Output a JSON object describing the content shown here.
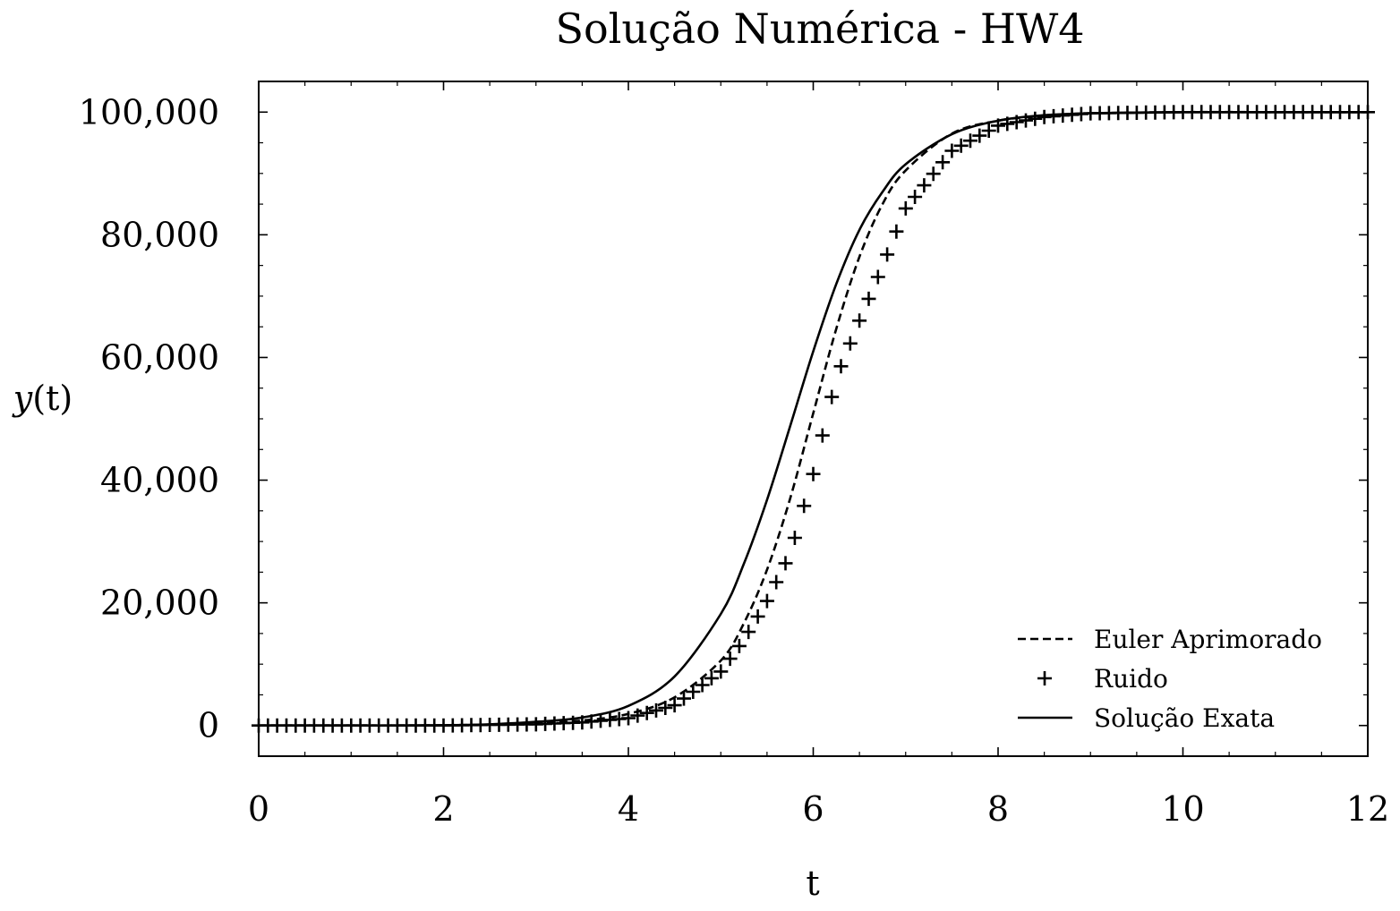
{
  "chart_data": {
    "type": "line",
    "title": "Solução Numérica  - HW4",
    "xlabel": "t",
    "ylabel_italic": "y",
    "ylabel_rest": "(t)",
    "xlim": [
      0,
      12
    ],
    "ylim": [
      -5000,
      105000
    ],
    "xticks": [
      0,
      2,
      4,
      6,
      8,
      10,
      12
    ],
    "xtick_labels": [
      "0",
      "2",
      "4",
      "6",
      "8",
      "10",
      "12"
    ],
    "yticks": [
      0,
      20000,
      40000,
      60000,
      80000,
      100000
    ],
    "ytick_labels": [
      "0",
      "20,000",
      "40,000",
      "60,000",
      "80,000",
      "100,000"
    ],
    "grid": false,
    "legend_position": "bottom-right",
    "x": [
      0.0,
      0.5,
      1.0,
      1.5,
      2.0,
      2.5,
      3.0,
      3.5,
      4.0,
      4.5,
      5.0,
      5.25,
      5.5,
      5.75,
      6.0,
      6.25,
      6.5,
      6.75,
      7.0,
      7.5,
      8.0,
      8.5,
      9.0,
      10.0,
      11.0,
      12.0
    ],
    "series": [
      {
        "name": "Euler Aprimorado",
        "style": "dashed",
        "color": "#000000",
        "values": [
          0,
          0,
          0,
          0,
          50,
          150,
          400,
          800,
          1900,
          4600,
          10600,
          16700,
          25400,
          37000,
          50900,
          64700,
          76400,
          85000,
          90500,
          96500,
          98600,
          99400,
          99800,
          100000,
          100000,
          100000
        ]
      },
      {
        "name": "Ruido",
        "style": "plus-markers",
        "color": "#000000",
        "values": [
          0,
          0,
          0,
          0,
          0,
          100,
          200,
          500,
          1200,
          3300,
          8800,
          14000,
          20300,
          28000,
          41000,
          56700,
          66000,
          74900,
          84300,
          93700,
          97800,
          99200,
          99800,
          100000,
          100000,
          100000
        ]
      },
      {
        "name": "Solução Exata",
        "style": "solid",
        "color": "#000000",
        "values": [
          0,
          0,
          0,
          0,
          50,
          200,
          600,
          1300,
          3200,
          8000,
          18200,
          26400,
          36800,
          48800,
          61000,
          72000,
          80800,
          87000,
          91500,
          96400,
          98600,
          99500,
          99800,
          100000,
          100000,
          100000
        ]
      }
    ]
  }
}
